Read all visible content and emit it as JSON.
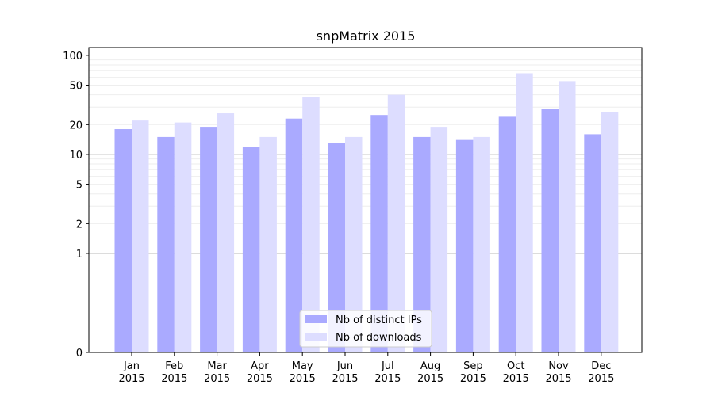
{
  "chart_data": {
    "type": "bar",
    "title": "snpMatrix 2015",
    "scale": "symlog",
    "categories": [
      [
        "Jan",
        "2015"
      ],
      [
        "Feb",
        "2015"
      ],
      [
        "Mar",
        "2015"
      ],
      [
        "Apr",
        "2015"
      ],
      [
        "May",
        "2015"
      ],
      [
        "Jun",
        "2015"
      ],
      [
        "Jul",
        "2015"
      ],
      [
        "Aug",
        "2015"
      ],
      [
        "Sep",
        "2015"
      ],
      [
        "Oct",
        "2015"
      ],
      [
        "Nov",
        "2015"
      ],
      [
        "Dec",
        "2015"
      ]
    ],
    "series": [
      {
        "name": "Nb of distinct IPs",
        "color": "#aaaaff",
        "values": [
          18,
          15,
          19,
          12,
          23,
          13,
          25,
          15,
          14,
          24,
          29,
          16
        ]
      },
      {
        "name": "Nb of downloads",
        "color": "#ddddff",
        "values": [
          22,
          21,
          26,
          15,
          38,
          15,
          40,
          19,
          15,
          66,
          55,
          27
        ]
      }
    ],
    "yticks": [
      "0",
      "1",
      "2",
      "5",
      "10",
      "20",
      "50",
      "100"
    ],
    "ylim": [
      0,
      120
    ],
    "grid": true,
    "legend": "bottom-center"
  }
}
